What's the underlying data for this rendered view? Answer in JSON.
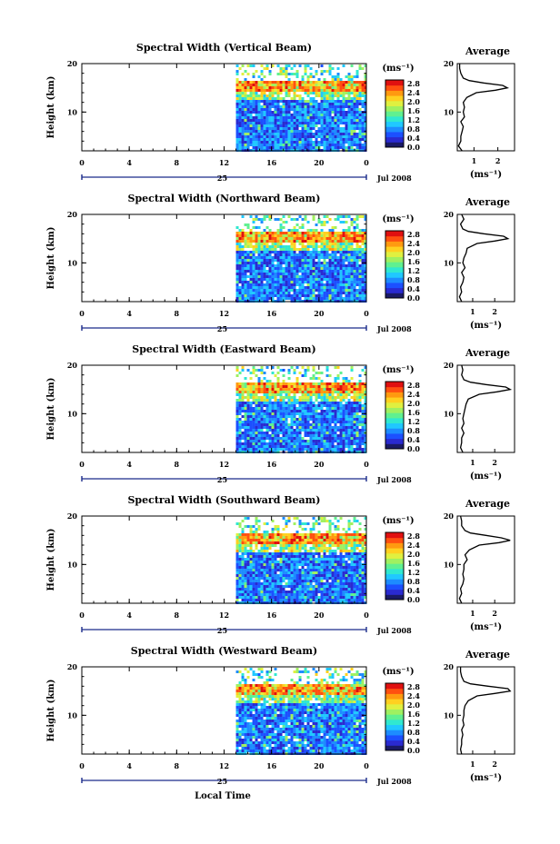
{
  "figure": {
    "shared_xlabel": "Local Time",
    "month_label": "Jul 2008",
    "day_label": "25",
    "unit_label": "(ms⁻¹)",
    "ylabel": "Height (km)",
    "colorbar_ticks": [
      "2.8",
      "2.4",
      "2.0",
      "1.6",
      "1.2",
      "0.8",
      "0.4",
      "0.0"
    ],
    "colorbar_colors": [
      "#1a1a66",
      "#2a2ad0",
      "#1c50ff",
      "#1d8cff",
      "#20c8ff",
      "#30e8d0",
      "#60f090",
      "#a0f060",
      "#e0f040",
      "#ffd020",
      "#ff9a10",
      "#ff5010",
      "#e01010"
    ]
  },
  "chart_data": [
    {
      "type": "heatmap",
      "title": "Spectral Width (Vertical Beam)",
      "xlabel": "Local Time",
      "ylabel": "Height (km)",
      "x_ticks": [
        "0",
        "4",
        "8",
        "12",
        "16",
        "20",
        "0"
      ],
      "xlim": [
        0,
        24
      ],
      "ylim": [
        2,
        20
      ],
      "y_ticks": [
        "10",
        "20"
      ],
      "data_start_hour": 13,
      "data_end_hour": 24,
      "high_width_layer_km": [
        14.5,
        16.5
      ],
      "colorbar_range": [
        0.0,
        3.0
      ],
      "colorbar_unit": "ms-1",
      "profile": {
        "title": "Average",
        "xlabel": "(ms⁻¹)",
        "x_ticks": [
          "1",
          "2"
        ],
        "xlim": [
          0.3,
          2.7
        ],
        "ylim": [
          2,
          20
        ],
        "y": [
          2,
          3,
          4,
          5,
          6,
          7,
          8,
          9,
          10,
          11,
          12,
          13,
          14,
          14.5,
          15,
          15.5,
          16,
          16.5,
          17,
          18,
          19,
          20
        ],
        "x": [
          0.5,
          0.35,
          0.45,
          0.45,
          0.5,
          0.55,
          0.45,
          0.6,
          0.55,
          0.6,
          0.55,
          0.7,
          1.1,
          1.9,
          2.4,
          2.2,
          1.4,
          0.8,
          0.55,
          0.45,
          0.4,
          0.4
        ]
      }
    },
    {
      "type": "heatmap",
      "title": "Spectral Width (Northward Beam)",
      "xlabel": "Local Time",
      "ylabel": "Height (km)",
      "x_ticks": [
        "0",
        "4",
        "8",
        "12",
        "16",
        "20",
        "0"
      ],
      "xlim": [
        0,
        24
      ],
      "ylim": [
        2,
        20
      ],
      "y_ticks": [
        "10",
        "20"
      ],
      "data_start_hour": 13,
      "data_end_hour": 24,
      "high_width_layer_km": [
        14.5,
        16.5
      ],
      "colorbar_range": [
        0.0,
        3.0
      ],
      "colorbar_unit": "ms-1",
      "profile": {
        "title": "Average",
        "xlabel": "(ms⁻¹)",
        "x_ticks": [
          "1",
          "2"
        ],
        "xlim": [
          0.3,
          2.9
        ],
        "ylim": [
          2,
          20
        ],
        "y": [
          2,
          3,
          4,
          5,
          6,
          7,
          8,
          9,
          10,
          11,
          12,
          13,
          14,
          14.5,
          15,
          15.5,
          16,
          16.5,
          17,
          18,
          19,
          20
        ],
        "x": [
          0.5,
          0.4,
          0.5,
          0.45,
          0.55,
          0.6,
          0.5,
          0.65,
          0.55,
          0.6,
          0.7,
          0.75,
          1.2,
          2.0,
          2.6,
          2.4,
          1.5,
          0.8,
          0.55,
          0.45,
          0.6,
          0.5
        ]
      }
    },
    {
      "type": "heatmap",
      "title": "Spectral Width (Eastward Beam)",
      "xlabel": "Local Time",
      "ylabel": "Height (km)",
      "x_ticks": [
        "0",
        "4",
        "8",
        "12",
        "16",
        "20",
        "0"
      ],
      "xlim": [
        0,
        24
      ],
      "ylim": [
        2,
        20
      ],
      "y_ticks": [
        "10",
        "20"
      ],
      "data_start_hour": 13,
      "data_end_hour": 24,
      "high_width_layer_km": [
        14.5,
        16.5
      ],
      "colorbar_range": [
        0.0,
        3.0
      ],
      "colorbar_unit": "ms-1",
      "profile": {
        "title": "Average",
        "xlabel": "(ms⁻¹)",
        "x_ticks": [
          "1",
          "2"
        ],
        "xlim": [
          0.3,
          2.9
        ],
        "ylim": [
          2,
          20
        ],
        "y": [
          2,
          3,
          4,
          5,
          6,
          7,
          8,
          9,
          10,
          11,
          12,
          13,
          14,
          14.5,
          15,
          15.5,
          16,
          16.5,
          17,
          18,
          19,
          20
        ],
        "x": [
          0.55,
          0.45,
          0.5,
          0.5,
          0.6,
          0.5,
          0.6,
          0.55,
          0.6,
          0.65,
          0.7,
          0.8,
          1.3,
          2.1,
          2.7,
          2.5,
          1.6,
          0.9,
          0.6,
          0.5,
          0.55,
          0.5
        ]
      }
    },
    {
      "type": "heatmap",
      "title": "Spectral Width (Southward Beam)",
      "xlabel": "Local Time",
      "ylabel": "Height (km)",
      "x_ticks": [
        "0",
        "4",
        "8",
        "12",
        "16",
        "20",
        "0"
      ],
      "xlim": [
        0,
        24
      ],
      "ylim": [
        2,
        20
      ],
      "y_ticks": [
        "10",
        "20"
      ],
      "data_start_hour": 13,
      "data_end_hour": 24,
      "high_width_layer_km": [
        14.5,
        16.5
      ],
      "colorbar_range": [
        0.0,
        3.0
      ],
      "colorbar_unit": "ms-1",
      "profile": {
        "title": "Average",
        "xlabel": "(ms⁻¹)",
        "x_ticks": [
          "1",
          "2"
        ],
        "xlim": [
          0.3,
          2.9
        ],
        "ylim": [
          2,
          20
        ],
        "y": [
          2,
          3,
          4,
          5,
          6,
          7,
          8,
          9,
          10,
          11,
          12,
          13,
          14,
          14.5,
          15,
          15.5,
          16,
          16.5,
          17,
          18,
          19,
          20
        ],
        "x": [
          0.5,
          0.4,
          0.5,
          0.45,
          0.55,
          0.6,
          0.55,
          0.6,
          0.6,
          0.75,
          0.65,
          0.85,
          1.3,
          2.2,
          2.7,
          2.3,
          1.6,
          0.9,
          0.65,
          0.5,
          0.5,
          0.45
        ]
      }
    },
    {
      "type": "heatmap",
      "title": "Spectral Width (Westward Beam)",
      "xlabel": "Local Time",
      "ylabel": "Height (km)",
      "x_ticks": [
        "0",
        "4",
        "8",
        "12",
        "16",
        "20",
        "0"
      ],
      "xlim": [
        0,
        24
      ],
      "ylim": [
        2,
        20
      ],
      "y_ticks": [
        "10",
        "20"
      ],
      "data_start_hour": 13,
      "data_end_hour": 24,
      "high_width_layer_km": [
        14.5,
        16.5
      ],
      "colorbar_range": [
        0.0,
        3.0
      ],
      "colorbar_unit": "ms-1",
      "profile": {
        "title": "Average",
        "xlabel": "(ms⁻¹)",
        "x_ticks": [
          "1",
          "2"
        ],
        "xlim": [
          0.3,
          2.9
        ],
        "ylim": [
          2,
          20
        ],
        "y": [
          2,
          3,
          4,
          5,
          6,
          7,
          8,
          9,
          10,
          11,
          12,
          13,
          14,
          14.5,
          15,
          15.5,
          16,
          16.5,
          17,
          18,
          19,
          20
        ],
        "x": [
          0.5,
          0.45,
          0.5,
          0.5,
          0.55,
          0.5,
          0.6,
          0.55,
          0.6,
          0.6,
          0.65,
          0.8,
          1.2,
          2.0,
          2.7,
          2.6,
          1.7,
          0.9,
          0.6,
          0.5,
          0.45,
          0.45
        ]
      }
    }
  ]
}
